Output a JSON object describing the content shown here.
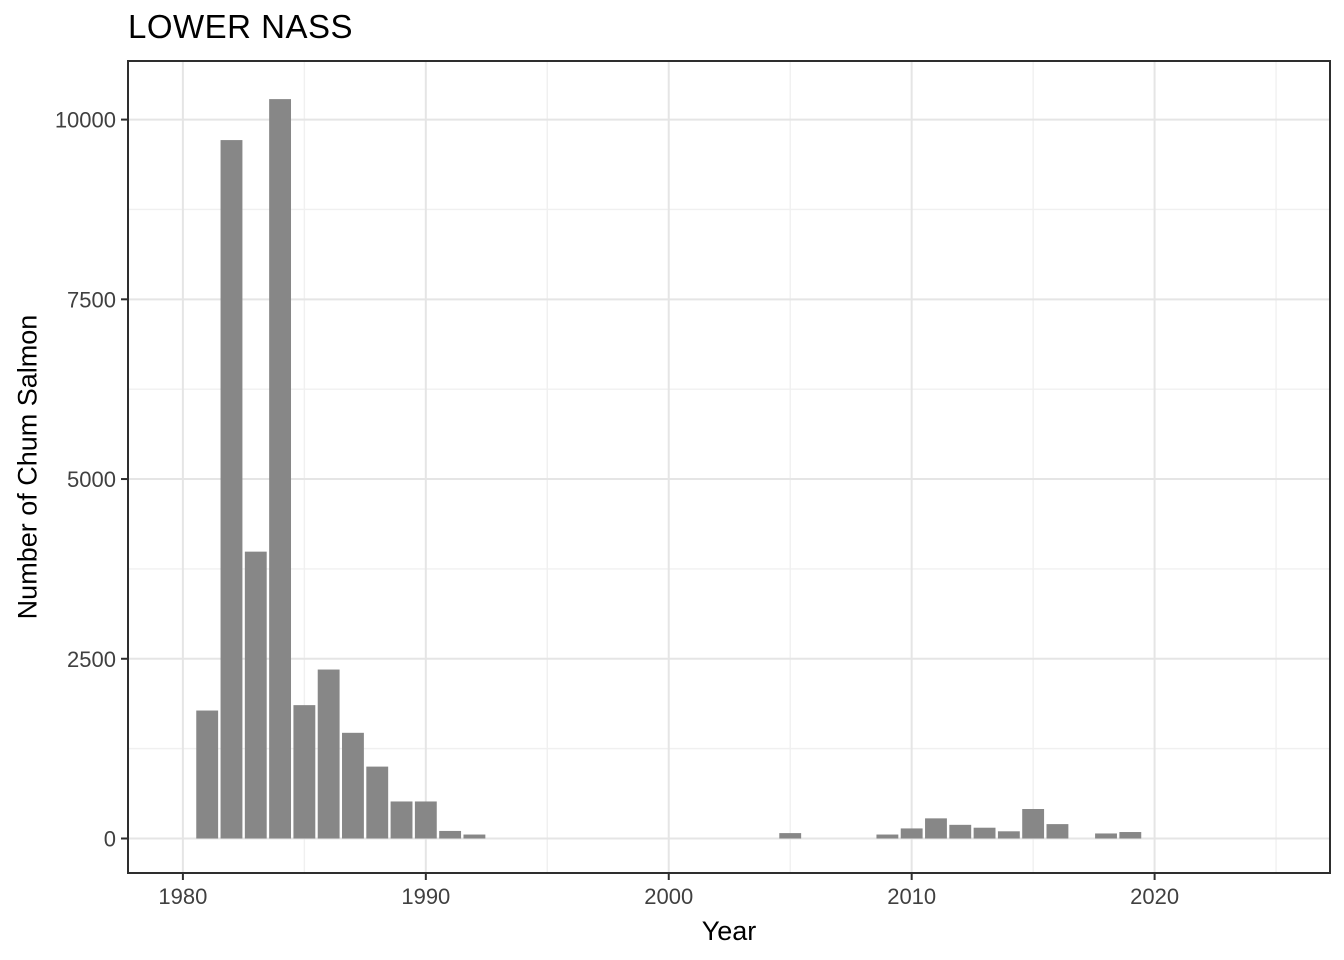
{
  "chart_data": {
    "type": "bar",
    "title": "LOWER NASS",
    "xlabel": "Year",
    "ylabel": "Number of Chum Salmon",
    "x": [
      1981,
      1982,
      1983,
      1984,
      1985,
      1986,
      1987,
      1988,
      1989,
      1990,
      1991,
      1992,
      2005,
      2009,
      2010,
      2011,
      2012,
      2013,
      2014,
      2015,
      2016,
      2018,
      2019
    ],
    "values": [
      1780,
      9715,
      3990,
      10285,
      1855,
      2350,
      1470,
      1000,
      515,
      515,
      105,
      55,
      75,
      55,
      140,
      280,
      190,
      150,
      100,
      410,
      200,
      70,
      90
    ],
    "bar_width_years": 0.9,
    "x_domain": [
      1977.74,
      2027.22
    ],
    "y_domain": [
      -480,
      10815
    ],
    "x_ticks": [
      1980,
      1990,
      2000,
      2010,
      2020
    ],
    "y_ticks": [
      0,
      2500,
      5000,
      7500,
      10000
    ],
    "x_minor_gridlines": [
      1985,
      1995,
      2005,
      2015,
      2025
    ],
    "y_minor_gridlines": [
      1250,
      3750,
      6250,
      8750
    ],
    "grid": true,
    "legend": "none",
    "colors": {
      "bar": "#878787",
      "grid_major": "#e5e5e5",
      "grid_minor": "#f0f0f0",
      "panel_border": "#2e2e2e",
      "tick": "#2e2e2e",
      "tick_label": "#404040",
      "title": "#000000",
      "panel_bg": "#ffffff"
    }
  }
}
